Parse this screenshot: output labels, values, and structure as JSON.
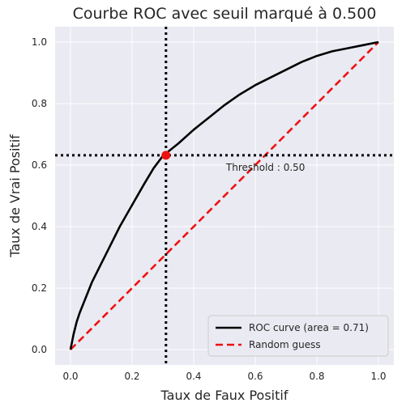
{
  "chart_data": {
    "type": "line",
    "title": "Courbe ROC avec seuil marqué à 0.500",
    "xlabel": "Taux de Faux Positif",
    "ylabel": "Taux de Vrai Positif",
    "xlim": [
      -0.05,
      1.05
    ],
    "ylim": [
      -0.05,
      1.05
    ],
    "x_ticks": [
      "0.0",
      "0.2",
      "0.4",
      "0.6",
      "0.8",
      "1.0"
    ],
    "y_ticks": [
      "0.0",
      "0.2",
      "0.4",
      "0.6",
      "0.8",
      "1.0"
    ],
    "grid": true,
    "legend_position": "bottom-right",
    "series": [
      {
        "name": "ROC curve (area = 0.71)",
        "color": "#000000",
        "style": "solid",
        "points": [
          [
            0.0,
            0.0
          ],
          [
            0.01,
            0.05
          ],
          [
            0.02,
            0.09
          ],
          [
            0.03,
            0.12
          ],
          [
            0.05,
            0.17
          ],
          [
            0.07,
            0.22
          ],
          [
            0.1,
            0.28
          ],
          [
            0.13,
            0.34
          ],
          [
            0.16,
            0.4
          ],
          [
            0.2,
            0.47
          ],
          [
            0.24,
            0.54
          ],
          [
            0.27,
            0.59
          ],
          [
            0.3,
            0.63
          ],
          [
            0.35,
            0.67
          ],
          [
            0.4,
            0.715
          ],
          [
            0.45,
            0.755
          ],
          [
            0.5,
            0.795
          ],
          [
            0.55,
            0.83
          ],
          [
            0.6,
            0.86
          ],
          [
            0.65,
            0.885
          ],
          [
            0.7,
            0.91
          ],
          [
            0.75,
            0.935
          ],
          [
            0.8,
            0.955
          ],
          [
            0.85,
            0.97
          ],
          [
            0.9,
            0.98
          ],
          [
            0.95,
            0.99
          ],
          [
            1.0,
            1.0
          ]
        ]
      },
      {
        "name": "Random guess",
        "color": "#ee1111",
        "style": "dashed",
        "points": [
          [
            0.0,
            0.0
          ],
          [
            1.0,
            1.0
          ]
        ]
      }
    ],
    "threshold": {
      "label": "Threshold : 0.50",
      "x": 0.31,
      "y": 0.632,
      "color": "#ee1111"
    }
  }
}
